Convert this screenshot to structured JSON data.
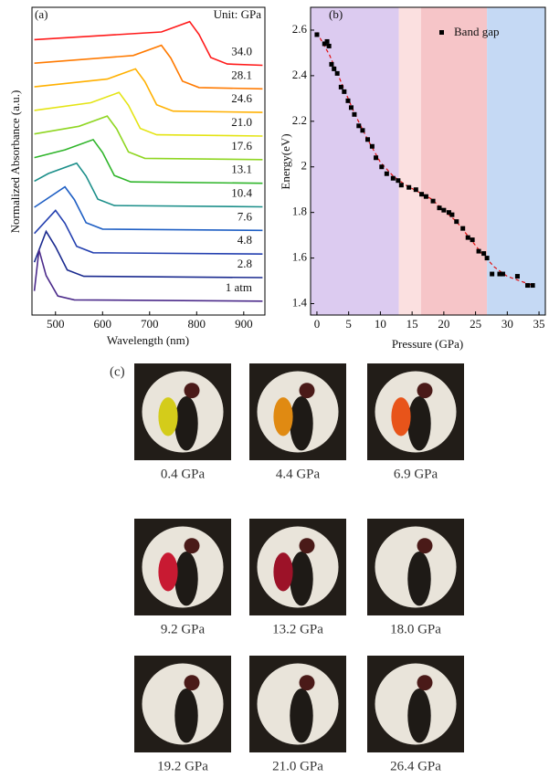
{
  "chart_data": [
    {
      "type": "line",
      "panel": "(a)",
      "annotation": "Unit: GPa",
      "x_label": "Wavelength (nm)",
      "y_label": "Normalized Absorbance (a.u.)",
      "xlim": [
        450,
        945
      ],
      "xticks": [
        500,
        600,
        700,
        800,
        900
      ],
      "ylim": [
        0,
        12
      ],
      "series": [
        {
          "name": "34.0",
          "color": "#ff1a1a",
          "x": [
            455,
            725,
            785,
            805,
            830,
            865,
            940
          ],
          "values": [
            10.74,
            11.04,
            11.44,
            10.94,
            10.04,
            9.79,
            9.74
          ]
        },
        {
          "name": "28.1",
          "color": "#ff7a00",
          "x": [
            455,
            665,
            725,
            745,
            770,
            805,
            940
          ],
          "values": [
            9.82,
            10.12,
            10.52,
            10.02,
            9.12,
            8.87,
            8.82
          ]
        },
        {
          "name": "24.6",
          "color": "#ffb000",
          "x": [
            455,
            610,
            670,
            690,
            715,
            750,
            940
          ],
          "values": [
            8.9,
            9.2,
            9.6,
            9.1,
            8.2,
            7.95,
            7.9
          ]
        },
        {
          "name": "21.0",
          "color": "#e4e414",
          "x": [
            455,
            575,
            635,
            655,
            680,
            715,
            940
          ],
          "values": [
            7.98,
            8.28,
            8.68,
            8.18,
            7.28,
            7.03,
            6.98
          ]
        },
        {
          "name": "17.6",
          "color": "#8fd622",
          "x": [
            455,
            550,
            610,
            630,
            655,
            690,
            940
          ],
          "values": [
            7.06,
            7.36,
            7.76,
            7.26,
            6.36,
            6.11,
            6.06
          ]
        },
        {
          "name": "13.1",
          "color": "#2fb52a",
          "x": [
            455,
            520,
            580,
            600,
            625,
            660,
            940
          ],
          "values": [
            6.14,
            6.44,
            6.84,
            6.34,
            5.44,
            5.19,
            5.14
          ]
        },
        {
          "name": "10.4",
          "color": "#1c8f8a",
          "x": [
            455,
            485,
            545,
            565,
            590,
            625,
            940
          ],
          "values": [
            5.22,
            5.52,
            5.92,
            5.42,
            4.52,
            4.27,
            4.22
          ]
        },
        {
          "name": "7.6",
          "color": "#1f5fc4",
          "x": [
            455,
            520,
            540,
            565,
            600,
            940
          ],
          "values": [
            4.2,
            5.0,
            4.5,
            3.6,
            3.35,
            3.3
          ]
        },
        {
          "name": "4.8",
          "color": "#2440b0",
          "x": [
            455,
            500,
            520,
            545,
            580,
            940
          ],
          "values": [
            3.18,
            4.08,
            3.58,
            2.68,
            2.43,
            2.38
          ]
        },
        {
          "name": "2.8",
          "color": "#1a2a8f",
          "x": [
            455,
            480,
            500,
            525,
            560,
            940
          ],
          "values": [
            2.06,
            3.26,
            2.66,
            1.76,
            1.51,
            1.46
          ]
        },
        {
          "name": "1 atm",
          "color": "#4b2a8a",
          "x": [
            455,
            465,
            480,
            505,
            540,
            940
          ],
          "values": [
            0.94,
            2.54,
            1.54,
            0.74,
            0.59,
            0.54
          ]
        }
      ]
    },
    {
      "type": "scatter",
      "panel": "(b)",
      "x_label": "Pressure (GPa)",
      "y_label": "Energy(eV)",
      "xlim": [
        -1,
        36
      ],
      "xticks": [
        0,
        5,
        10,
        15,
        20,
        25,
        30,
        35
      ],
      "ylim": [
        1.35,
        2.7
      ],
      "yticks": [
        1.4,
        1.6,
        1.8,
        2.0,
        2.2,
        2.4,
        2.6
      ],
      "legend": "upper right",
      "regions": [
        {
          "from": -1,
          "to": 12.9,
          "color": "#dccbf0"
        },
        {
          "from": 12.9,
          "to": 16.4,
          "color": "#fbe0e0"
        },
        {
          "from": 16.4,
          "to": 26.8,
          "color": "#f6c5c8"
        },
        {
          "from": 26.8,
          "to": 36,
          "color": "#c5d9f4"
        }
      ],
      "series": [
        {
          "name": "Band gap",
          "color": "#000000",
          "x": [
            0,
            1.2,
            1.6,
            1.9,
            2.3,
            2.7,
            3.2,
            3.8,
            4.3,
            4.9,
            5.4,
            5.9,
            6.6,
            7.2,
            8.0,
            8.7,
            9.3,
            10.2,
            11.0,
            12.0,
            12.8,
            13.3,
            14.5,
            15.6,
            16.5,
            17.2,
            18.3,
            19.3,
            20.0,
            20.8,
            21.3,
            22.0,
            23.0,
            23.8,
            24.5,
            25.5,
            26.3,
            26.8,
            27.6,
            28.8,
            29.3,
            31.6,
            33.2,
            34.0
          ],
          "values": [
            2.58,
            2.54,
            2.55,
            2.53,
            2.45,
            2.43,
            2.41,
            2.35,
            2.33,
            2.29,
            2.26,
            2.23,
            2.18,
            2.16,
            2.12,
            2.09,
            2.04,
            2.0,
            1.97,
            1.95,
            1.94,
            1.92,
            1.91,
            1.9,
            1.88,
            1.87,
            1.85,
            1.82,
            1.81,
            1.8,
            1.79,
            1.76,
            1.73,
            1.69,
            1.68,
            1.63,
            1.62,
            1.6,
            1.53,
            1.53,
            1.53,
            1.52,
            1.48,
            1.48
          ]
        }
      ],
      "fit": {
        "color": "#e01010",
        "x": [
          0,
          2,
          4,
          6,
          8,
          10,
          12,
          14,
          16,
          18,
          20,
          22,
          24,
          26,
          28,
          30,
          32,
          34
        ],
        "values": [
          2.59,
          2.49,
          2.36,
          2.23,
          2.12,
          2.02,
          1.96,
          1.92,
          1.89,
          1.86,
          1.81,
          1.76,
          1.69,
          1.62,
          1.56,
          1.52,
          1.5,
          1.48
        ]
      }
    }
  ],
  "panel_c": {
    "label": "(c)",
    "captions": [
      "0.4 GPa",
      "4.4 GPa",
      "6.9 GPa",
      "9.2 GPa",
      "13.2 GPa",
      "18.0 GPa",
      "19.2 GPa",
      "21.0 GPa",
      "26.4 GPa"
    ]
  }
}
